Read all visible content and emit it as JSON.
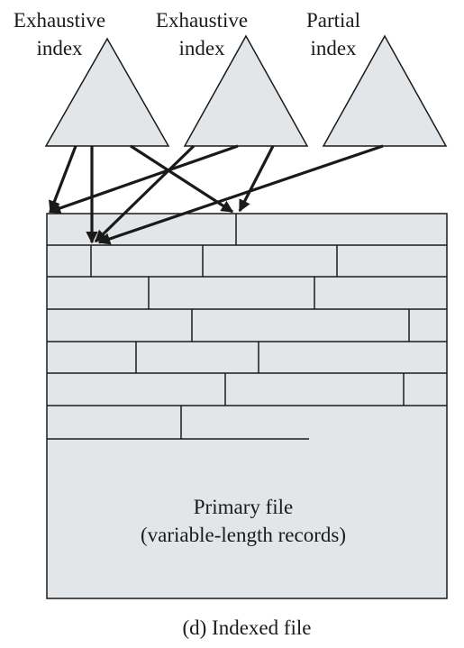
{
  "indexes": [
    {
      "line1": "Exhaustive",
      "line2": "index"
    },
    {
      "line1": "Exhaustive",
      "line2": "index"
    },
    {
      "line1": "Partial",
      "line2": "index"
    }
  ],
  "primary_file": {
    "line1": "Primary file",
    "line2": "(variable-length records)"
  },
  "caption": "(d) Indexed file",
  "colors": {
    "fill": "#e3e6e8",
    "stroke": "#1a1a1a"
  }
}
